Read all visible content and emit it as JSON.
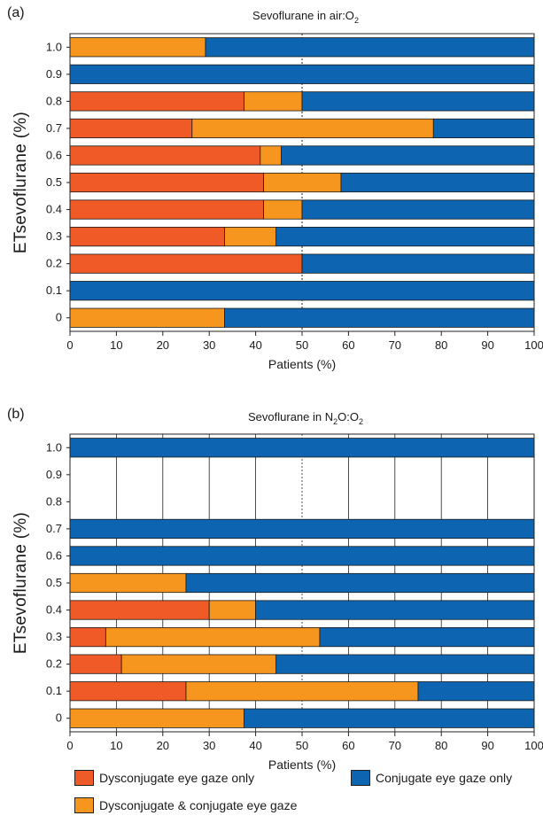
{
  "colors": {
    "dysconjugate_only": "#EF5A27",
    "both": "#F7961E",
    "conjugate_only": "#0D64B0"
  },
  "legend": {
    "dysconjugate_only": "Dysconjugate eye gaze only",
    "conjugate_only": "Conjugate eye gaze only",
    "both": "Dysconjugate & conjugate eye gaze"
  },
  "chart_data": [
    {
      "type": "bar",
      "orientation": "horizontal",
      "stacked": true,
      "panel_label": "(a)",
      "title_prefix": "Sevoflurane in air:O",
      "title_sub": "2",
      "title_suffix": "",
      "xlabel": "Patients (%)",
      "ylabel": "ETsevoflurane (%)",
      "xlim": [
        0,
        100
      ],
      "xticks": [
        "0",
        "10",
        "20",
        "30",
        "40",
        "50",
        "60",
        "70",
        "80",
        "90",
        "100"
      ],
      "categories": [
        "0",
        "0.1",
        "0.2",
        "0.3",
        "0.4",
        "0.5",
        "0.6",
        "0.7",
        "0.8",
        "0.9",
        "1.0"
      ],
      "series": [
        {
          "key": "dysconjugate_only",
          "values": [
            0,
            0,
            50,
            33.3,
            41.7,
            41.7,
            41,
            26.3,
            37.5,
            0,
            0
          ]
        },
        {
          "key": "both",
          "values": [
            33.3,
            0,
            0,
            11.1,
            8.3,
            16.7,
            4.5,
            52,
            12.5,
            0,
            29.2
          ]
        },
        {
          "key": "conjugate_only",
          "values": [
            66.7,
            100,
            50,
            55.6,
            50,
            41.6,
            54.5,
            21.7,
            50,
            100,
            70.8
          ]
        }
      ],
      "grid": "vertical dotted line at 50"
    },
    {
      "type": "bar",
      "orientation": "horizontal",
      "stacked": true,
      "panel_label": "(b)",
      "title_prefix": "Sevoflurane in N",
      "title_sub": "2",
      "title_mid": "O:O",
      "title_sub2": "2",
      "xlabel": "Patients (%)",
      "ylabel": "ETsevoflurane (%)",
      "xlim": [
        0,
        100
      ],
      "xticks": [
        "0",
        "10",
        "20",
        "30",
        "40",
        "50",
        "60",
        "70",
        "80",
        "90",
        "100"
      ],
      "categories": [
        "0",
        "0.1",
        "0.2",
        "0.3",
        "0.4",
        "0.5",
        "0.6",
        "0.7",
        "0.8",
        "0.9",
        "1.0"
      ],
      "series": [
        {
          "key": "dysconjugate_only",
          "values": [
            0,
            25,
            11.1,
            7.7,
            30,
            0,
            0,
            0,
            null,
            null,
            0
          ]
        },
        {
          "key": "both",
          "values": [
            37.5,
            50,
            33.3,
            46.1,
            10,
            25,
            0,
            0,
            null,
            null,
            0
          ]
        },
        {
          "key": "conjugate_only",
          "values": [
            62.5,
            25,
            55.6,
            46.2,
            60,
            75,
            100,
            100,
            null,
            null,
            100
          ]
        }
      ],
      "grid": "vertical gridlines at every 10"
    }
  ]
}
